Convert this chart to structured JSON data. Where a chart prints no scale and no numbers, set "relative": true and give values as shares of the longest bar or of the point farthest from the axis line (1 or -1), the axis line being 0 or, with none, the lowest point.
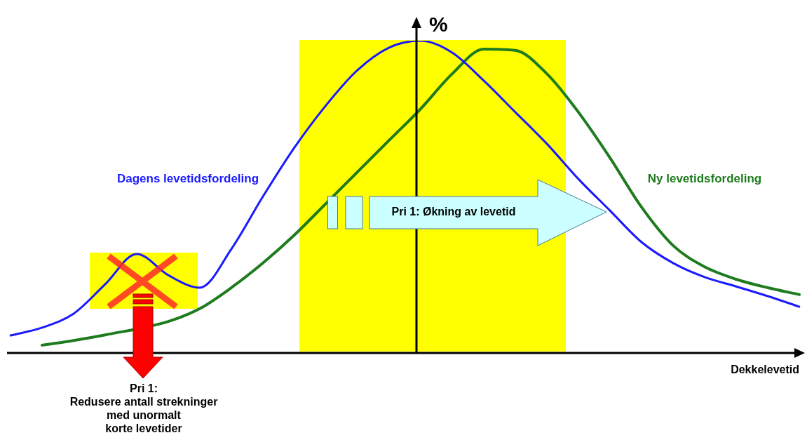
{
  "chart_data": {
    "type": "line",
    "relative": true,
    "xlabel": "Dekkelevetid",
    "ylabel": "%",
    "categories": [
      null,
      null,
      null,
      null,
      null,
      null,
      null,
      null,
      null,
      null,
      null,
      null,
      null,
      null,
      null,
      null,
      null,
      null,
      null,
      null,
      null,
      null,
      null,
      null,
      null,
      null
    ],
    "series": [
      {
        "name": "Dagens levetidsfordeling",
        "color": "#1a1aff",
        "values": [
          0.056,
          0.081,
          0.126,
          0.22,
          0.317,
          0.249,
          0.209,
          0.333,
          0.501,
          0.658,
          0.793,
          0.906,
          0.978,
          1,
          0.962,
          0.872,
          0.771,
          0.67,
          0.557,
          0.456,
          0.355,
          0.288,
          0.243,
          0.213,
          0.182,
          0.148
        ]
      },
      {
        "name": "Ny levetidsfordeling",
        "color": "#1e7b1e",
        "values": [
          null,
          0.025,
          0.04,
          0.058,
          null,
          0.101,
          0.142,
          0.209,
          0.288,
          0.378,
          0.479,
          0.58,
          0.681,
          0.782,
          0.894,
          0.973,
          0.969,
          0.894,
          0.771,
          0.625,
          0.467,
          0.344,
          0.276,
          0.236,
          0.209,
          0.187
        ]
      }
    ],
    "annotations": [
      "Pri 1: Økning av levetid",
      "Pri 1:\nRedusere antall strekninger\nmed unormalt\nkorte levetider"
    ],
    "marker": "none",
    "legend": false
  }
}
